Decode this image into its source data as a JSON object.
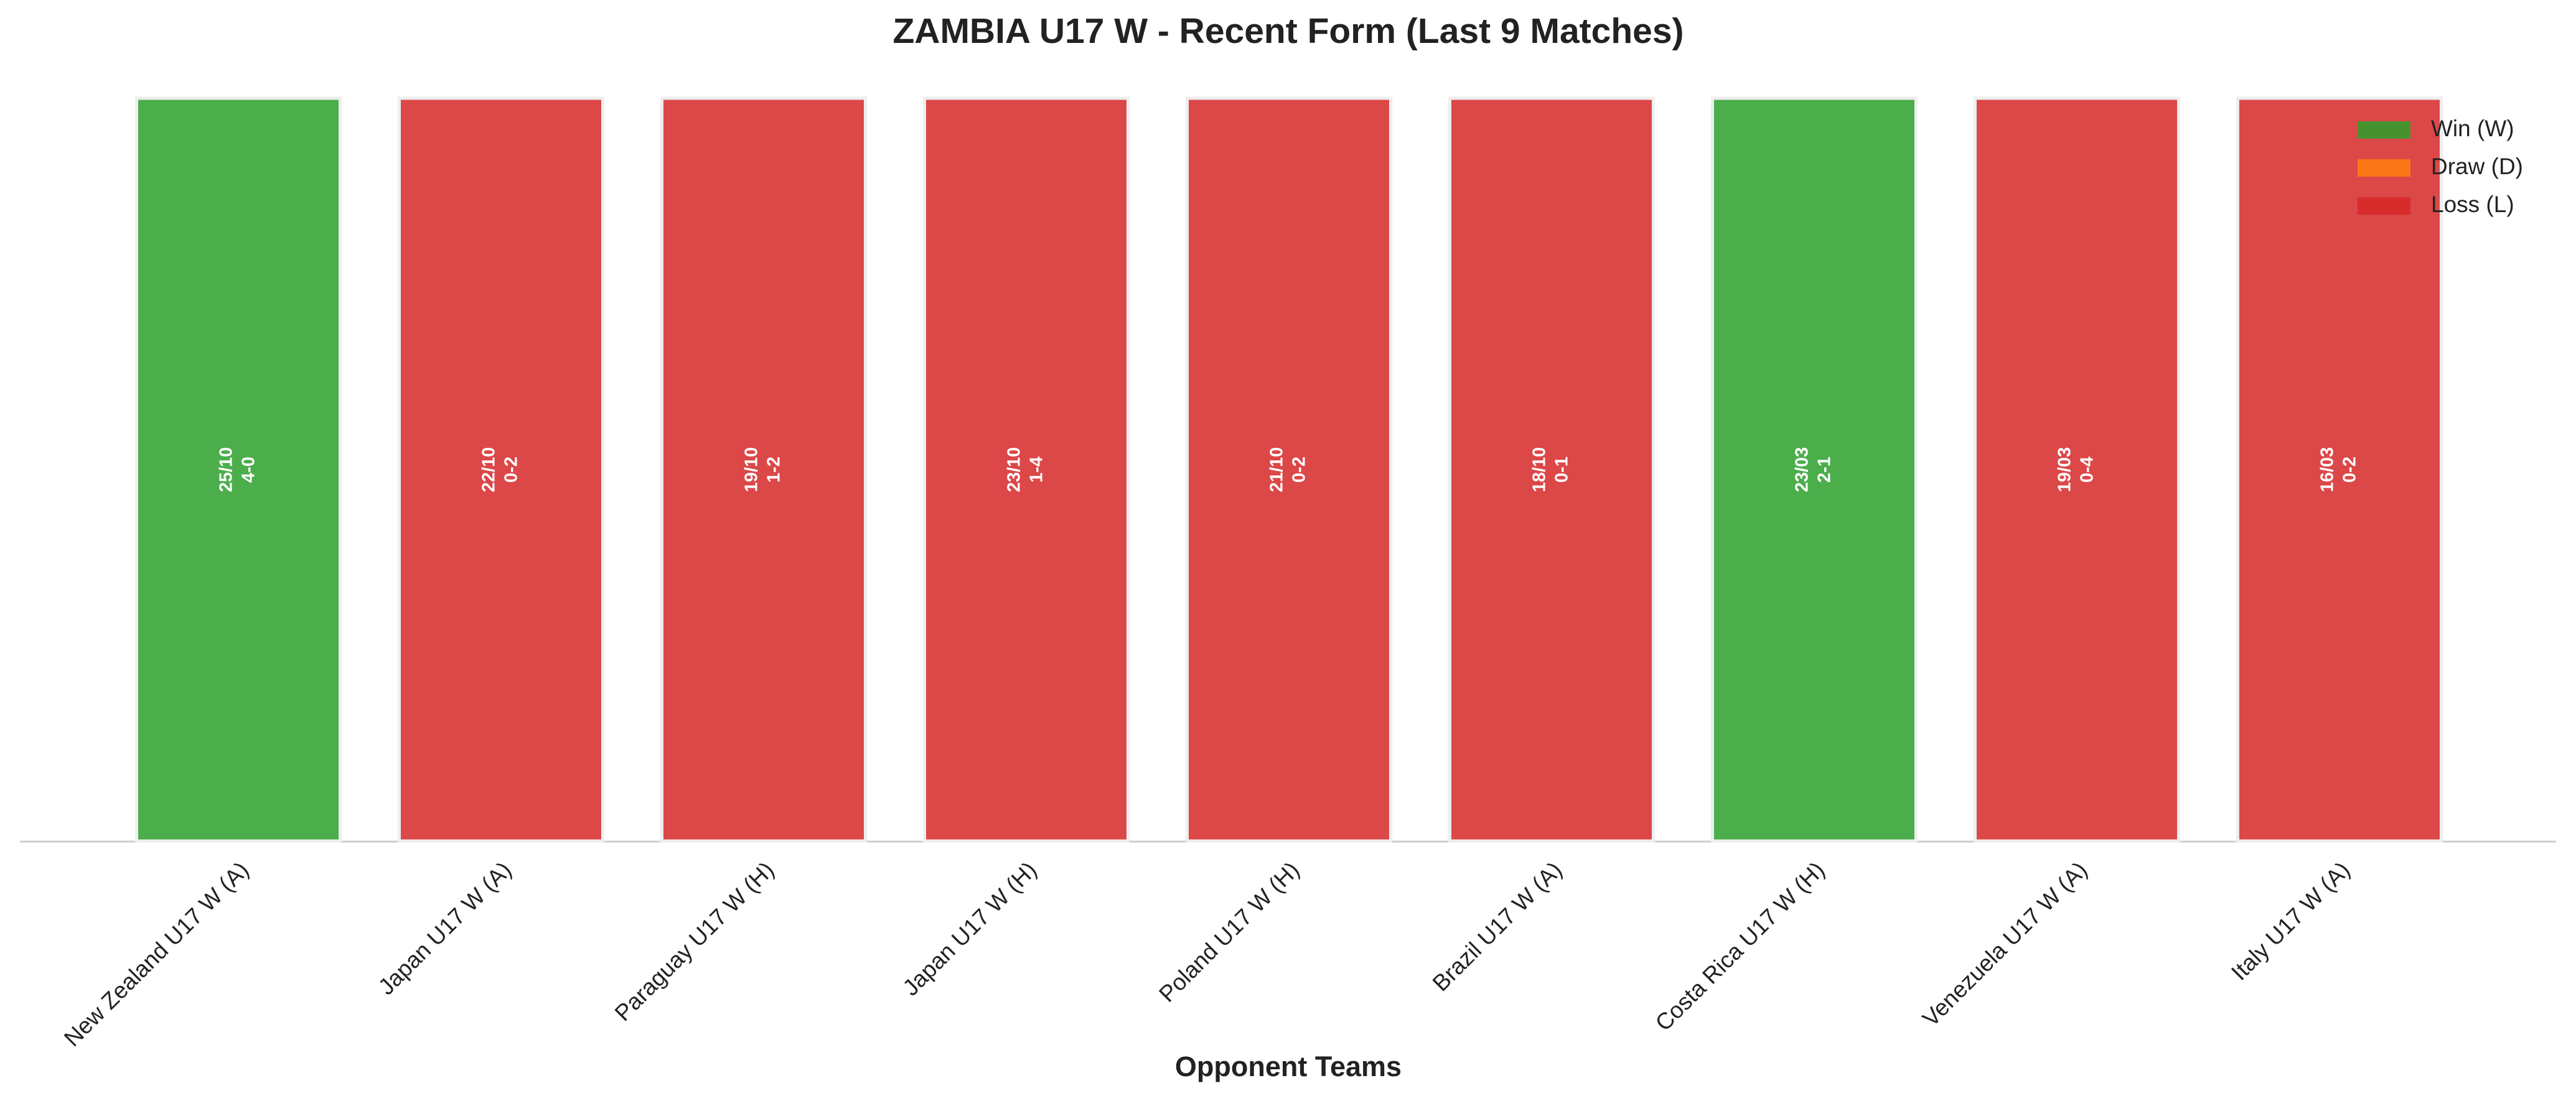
{
  "chart_data": {
    "type": "bar",
    "title": "ZAMBIA U17 W - Recent Form (Last 9 Matches)",
    "x_label": "Opponent Teams",
    "categories": [
      "New Zealand U17 W (A)",
      "Japan U17 W (A)",
      "Paraguay U17 W (H)",
      "Japan U17 W (H)",
      "Poland U17 W (H)",
      "Brazil U17 W (A)",
      "Costa Rica U17 W (H)",
      "Venezuela U17 W (A)",
      "Italy U17 W (A)"
    ],
    "values": [
      1,
      1,
      1,
      1,
      1,
      1,
      1,
      1,
      1
    ],
    "ylim": [
      0,
      1
    ],
    "dates": [
      "25/10",
      "22/10",
      "19/10",
      "23/10",
      "21/10",
      "18/10",
      "23/03",
      "19/03",
      "16/03"
    ],
    "scores": [
      "4-0",
      "0-2",
      "1-2",
      "1-4",
      "0-2",
      "0-1",
      "2-1",
      "0-4",
      "0-2"
    ],
    "colors": [
      "#2ca02c",
      "#d62728",
      "#d62728",
      "#d62728",
      "#d62728",
      "#d62728",
      "#2ca02c",
      "#d62728",
      "#d62728"
    ],
    "legend_position": "upper right",
    "legend": [
      {
        "label": "Win (W)",
        "color": "#2ca02c"
      },
      {
        "label": "Draw (D)",
        "color": "#ff7f0e"
      },
      {
        "label": "Loss (L)",
        "color": "#d62728"
      }
    ]
  }
}
